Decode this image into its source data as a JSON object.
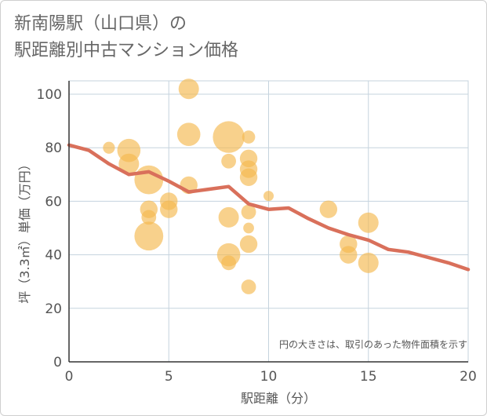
{
  "title_lines": [
    "新南陽駅（山口県）の",
    "駅距離別中古マンション価格"
  ],
  "chart_data": {
    "type": "scatter",
    "xlabel": "駅距離（分）",
    "ylabel": "坪（3.3㎡）単価（万円）",
    "xlim": [
      0,
      20
    ],
    "ylim": [
      0,
      105
    ],
    "xticks": [
      0,
      5,
      10,
      15,
      20
    ],
    "yticks": [
      0,
      20,
      40,
      60,
      80,
      100
    ],
    "grid": true,
    "annotation": "円の大きさは、取引のあった物件面積を示す",
    "colors": {
      "bubble": "#f5b94f",
      "line": "#d9705b",
      "grid": "#c5d3de",
      "text": "#555555"
    },
    "points": [
      {
        "x": 2,
        "y": 80,
        "s": 1
      },
      {
        "x": 3,
        "y": 79,
        "s": 3
      },
      {
        "x": 3,
        "y": 74,
        "s": 2.5
      },
      {
        "x": 4,
        "y": 68,
        "s": 4
      },
      {
        "x": 4,
        "y": 57,
        "s": 2
      },
      {
        "x": 4,
        "y": 54,
        "s": 1.5
      },
      {
        "x": 4,
        "y": 47,
        "s": 4
      },
      {
        "x": 5,
        "y": 60,
        "s": 2
      },
      {
        "x": 5,
        "y": 57,
        "s": 2
      },
      {
        "x": 6,
        "y": 102,
        "s": 2.5
      },
      {
        "x": 6,
        "y": 85,
        "s": 3
      },
      {
        "x": 6,
        "y": 66,
        "s": 2
      },
      {
        "x": 8,
        "y": 84,
        "s": 4.5
      },
      {
        "x": 8,
        "y": 75,
        "s": 1.5
      },
      {
        "x": 8,
        "y": 54,
        "s": 2.5
      },
      {
        "x": 8,
        "y": 40,
        "s": 3
      },
      {
        "x": 8,
        "y": 37,
        "s": 1.5
      },
      {
        "x": 9,
        "y": 84,
        "s": 1.2
      },
      {
        "x": 9,
        "y": 76,
        "s": 2
      },
      {
        "x": 9,
        "y": 72,
        "s": 2
      },
      {
        "x": 9,
        "y": 69,
        "s": 2
      },
      {
        "x": 9,
        "y": 56,
        "s": 1.5
      },
      {
        "x": 9,
        "y": 50,
        "s": 0.8
      },
      {
        "x": 9,
        "y": 44,
        "s": 2
      },
      {
        "x": 9,
        "y": 28,
        "s": 1.5
      },
      {
        "x": 10,
        "y": 62,
        "s": 0.7
      },
      {
        "x": 13,
        "y": 57,
        "s": 2
      },
      {
        "x": 14,
        "y": 44,
        "s": 2
      },
      {
        "x": 14,
        "y": 40,
        "s": 2
      },
      {
        "x": 15,
        "y": 52,
        "s": 2.5
      },
      {
        "x": 15,
        "y": 37,
        "s": 2.5
      }
    ],
    "trend": {
      "x": [
        0,
        1,
        2,
        3,
        4,
        5,
        6,
        7,
        8,
        9,
        10,
        11,
        12,
        13,
        14,
        15,
        16,
        17,
        18,
        19,
        20
      ],
      "y": [
        81,
        79,
        74,
        70,
        71,
        67.5,
        63.5,
        64.5,
        65.5,
        59,
        57,
        57.5,
        53.5,
        50,
        47.5,
        45.5,
        42,
        41,
        39,
        37,
        34.5
      ]
    }
  }
}
